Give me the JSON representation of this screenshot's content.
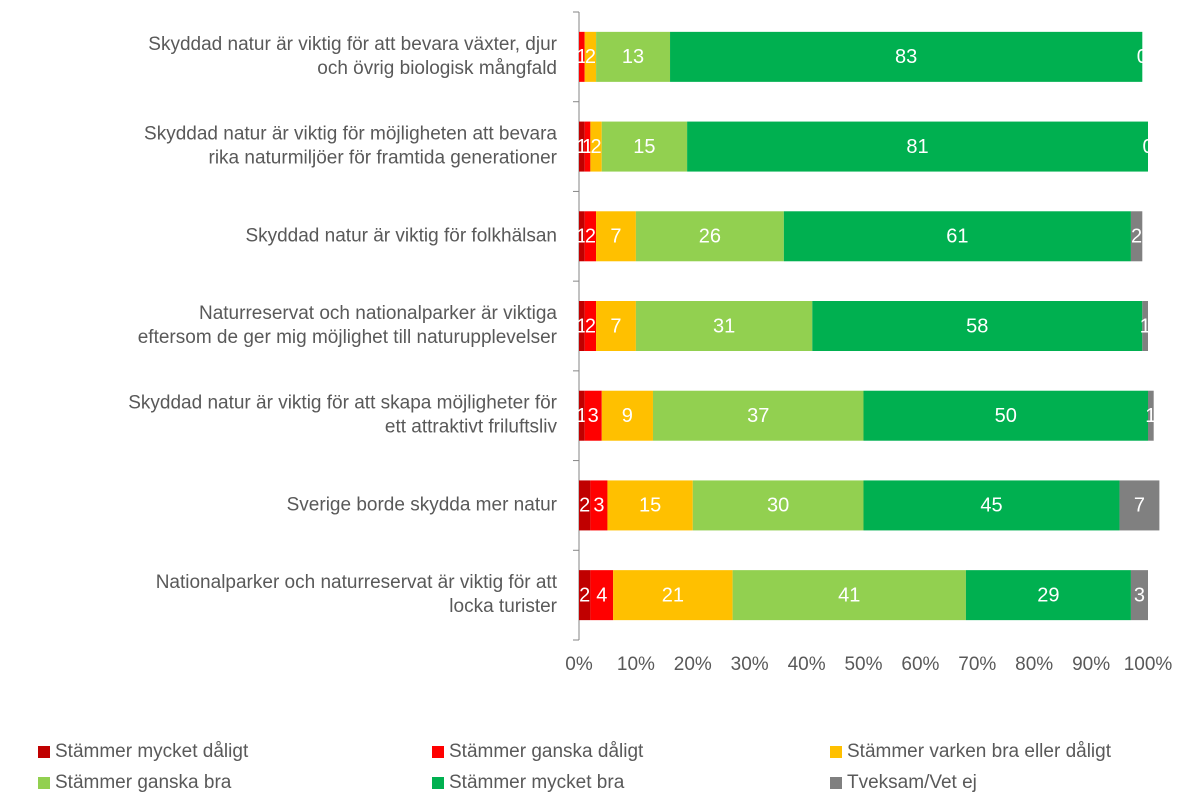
{
  "chart_data": {
    "type": "stacked_barh",
    "categories": [
      "Skyddad natur är viktig för att bevara växter, djur\noch övrig biologisk mångfald",
      "Skyddad natur är viktig för möjligheten att bevara\nrika naturmiljöer för framtida generationer",
      "Skyddad natur är viktig för folkhälsan",
      "Naturreservat och nationalparker är viktiga\neftersom de ger mig möjlighet till naturupplevelser",
      "Skyddad natur är viktig för att skapa möjligheter för\nett attraktivt friluftsliv",
      "Sverige borde skydda mer natur",
      "Nationalparker och naturreservat är viktig för att\nlocka turister"
    ],
    "series": [
      {
        "name": "Stämmer mycket dåligt",
        "color": "#c00000",
        "values": [
          null,
          1,
          1,
          1,
          1,
          2,
          2
        ]
      },
      {
        "name": "Stämmer ganska dåligt",
        "color": "#ff0000",
        "values": [
          1,
          1,
          2,
          2,
          3,
          3,
          4
        ]
      },
      {
        "name": "Stämmer varken bra eller dåligt",
        "color": "#ffc000",
        "values": [
          2,
          2,
          7,
          7,
          9,
          15,
          21
        ]
      },
      {
        "name": "Stämmer ganska bra",
        "color": "#92d050",
        "values": [
          13,
          15,
          26,
          31,
          37,
          30,
          41
        ]
      },
      {
        "name": "Stämmer  mycket bra",
        "color": "#00b050",
        "values": [
          83,
          81,
          61,
          58,
          50,
          45,
          29
        ]
      },
      {
        "name": "Tveksam/Vet ej",
        "color": "#808080",
        "values": [
          0,
          0,
          2,
          1,
          1,
          7,
          3
        ]
      }
    ],
    "xlim": [
      0,
      100
    ],
    "xticks": [
      {
        "value": 0,
        "label": "0%"
      },
      {
        "value": 10,
        "label": "10%"
      },
      {
        "value": 20,
        "label": "20%"
      },
      {
        "value": 30,
        "label": "30%"
      },
      {
        "value": 40,
        "label": "40%"
      },
      {
        "value": 50,
        "label": "50%"
      },
      {
        "value": 60,
        "label": "60%"
      },
      {
        "value": 70,
        "label": "70%"
      },
      {
        "value": 80,
        "label": "80%"
      },
      {
        "value": 90,
        "label": "90%"
      },
      {
        "value": 100,
        "label": "100%"
      }
    ],
    "legend": "bottom"
  }
}
